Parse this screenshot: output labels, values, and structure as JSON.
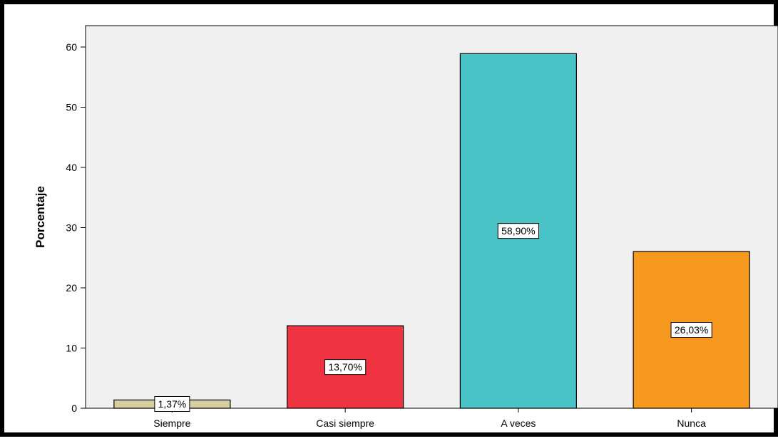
{
  "chart_data": {
    "type": "bar",
    "title": "",
    "xlabel": "",
    "ylabel": "Porcentaje",
    "categories": [
      "Siempre",
      "Casi siempre",
      "A veces",
      "Nunca"
    ],
    "values": [
      1.37,
      13.7,
      58.9,
      26.03
    ],
    "data_labels": [
      "1,37%",
      "13,70%",
      "58,90%",
      "26,03%"
    ],
    "colors": [
      "#d6d0a0",
      "#ef3340",
      "#4ac3c6",
      "#f7981f"
    ],
    "ylim": [
      0,
      60
    ],
    "yticks": [
      0,
      10,
      20,
      30,
      40,
      50,
      60
    ],
    "plot_background": "#f0f0f0",
    "grid": false,
    "legend": "none"
  }
}
